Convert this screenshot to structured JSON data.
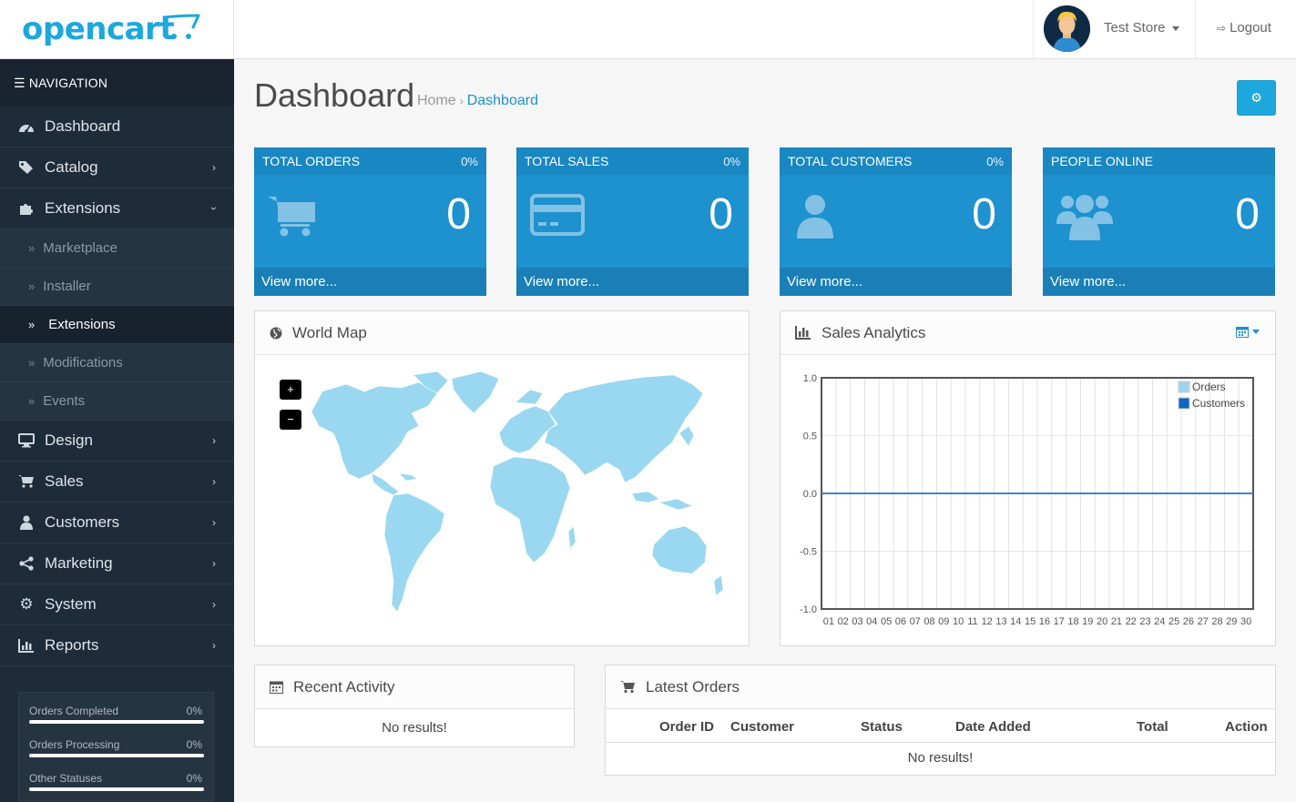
{
  "header": {
    "logo_text": "opencart",
    "store_name": "Test Store",
    "logout_label": "Logout"
  },
  "sidebar": {
    "nav_heading": "NAVIGATION",
    "items": [
      {
        "label": "Dashboard",
        "icon": "dashboard-icon"
      },
      {
        "label": "Catalog",
        "icon": "tags-icon"
      },
      {
        "label": "Extensions",
        "icon": "puzzle-icon",
        "expanded": true
      },
      {
        "label": "Design",
        "icon": "desktop-icon"
      },
      {
        "label": "Sales",
        "icon": "cart-icon"
      },
      {
        "label": "Customers",
        "icon": "user-icon"
      },
      {
        "label": "Marketing",
        "icon": "share-icon"
      },
      {
        "label": "System",
        "icon": "cog-icon"
      },
      {
        "label": "Reports",
        "icon": "bar-chart-icon"
      }
    ],
    "extensions_sub": [
      {
        "label": "Marketplace"
      },
      {
        "label": "Installer"
      },
      {
        "label": "Extensions",
        "active": true
      },
      {
        "label": "Modifications"
      },
      {
        "label": "Events"
      }
    ],
    "stats": [
      {
        "label": "Orders Completed",
        "value": "0%"
      },
      {
        "label": "Orders Processing",
        "value": "0%"
      },
      {
        "label": "Other Statuses",
        "value": "0%"
      }
    ]
  },
  "page": {
    "title": "Dashboard",
    "breadcrumb_home": "Home",
    "breadcrumb_current": "Dashboard",
    "breadcrumb_separator": "›"
  },
  "tiles": [
    {
      "title": "TOTAL ORDERS",
      "percent": "0%",
      "value": "0",
      "link": "View more...",
      "icon": "shopping-cart-icon"
    },
    {
      "title": "TOTAL SALES",
      "percent": "0%",
      "value": "0",
      "link": "View more...",
      "icon": "credit-card-icon"
    },
    {
      "title": "TOTAL CUSTOMERS",
      "percent": "0%",
      "value": "0",
      "link": "View more...",
      "icon": "user-icon"
    },
    {
      "title": "PEOPLE ONLINE",
      "value": "0",
      "link": "View more...",
      "icon": "users-icon"
    }
  ],
  "world_map": {
    "title": "World Map",
    "zoom_in": "+",
    "zoom_out": "−",
    "land_color": "#99d8f0"
  },
  "sales_analytics": {
    "title": "Sales Analytics"
  },
  "recent_activity": {
    "title": "Recent Activity",
    "empty_text": "No results!"
  },
  "latest_orders": {
    "title": "Latest Orders",
    "columns": [
      "Order ID",
      "Customer",
      "Status",
      "Date Added",
      "Total",
      "Action"
    ],
    "empty_text": "No results!"
  },
  "colors": {
    "accent": "#1e91cf",
    "sidebar_bg": "#1e2b38",
    "orders_series": "#9bd4f0",
    "customers_series": "#1065c0"
  },
  "chart_data": {
    "type": "line",
    "categories": [
      "01",
      "02",
      "03",
      "04",
      "05",
      "06",
      "07",
      "08",
      "09",
      "10",
      "11",
      "12",
      "13",
      "14",
      "15",
      "16",
      "17",
      "18",
      "19",
      "20",
      "21",
      "22",
      "23",
      "24",
      "25",
      "26",
      "27",
      "28",
      "29",
      "30"
    ],
    "series": [
      {
        "name": "Orders",
        "values": [
          0,
          0,
          0,
          0,
          0,
          0,
          0,
          0,
          0,
          0,
          0,
          0,
          0,
          0,
          0,
          0,
          0,
          0,
          0,
          0,
          0,
          0,
          0,
          0,
          0,
          0,
          0,
          0,
          0,
          0
        ]
      },
      {
        "name": "Customers",
        "values": [
          0,
          0,
          0,
          0,
          0,
          0,
          0,
          0,
          0,
          0,
          0,
          0,
          0,
          0,
          0,
          0,
          0,
          0,
          0,
          0,
          0,
          0,
          0,
          0,
          0,
          0,
          0,
          0,
          0,
          0
        ]
      }
    ],
    "yticks": [
      "1.0",
      "0.5",
      "0.0",
      "-0.5",
      "-1.0"
    ],
    "ylim": [
      -1,
      1
    ],
    "grid": true,
    "legend": "top-right"
  }
}
